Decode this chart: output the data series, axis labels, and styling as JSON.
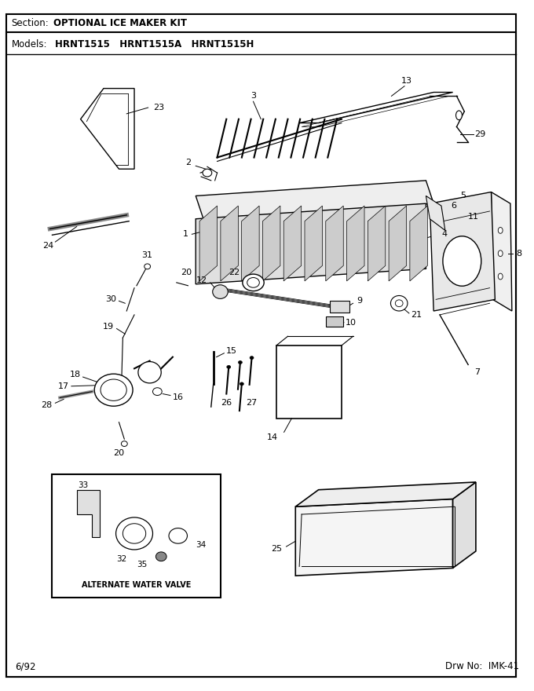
{
  "title_section": "Section:  OPTIONAL ICE MAKER KIT",
  "title_models": "Models:  HRNT1515   HRNT1515A   HRNT1515H",
  "footer_left": "6/92",
  "footer_right": "Drw No:  IMK-41",
  "bg_color": "#ffffff",
  "border_color": "#000000",
  "text_color": "#000000",
  "figsize": [
    6.8,
    8.8
  ],
  "dpi": 100
}
